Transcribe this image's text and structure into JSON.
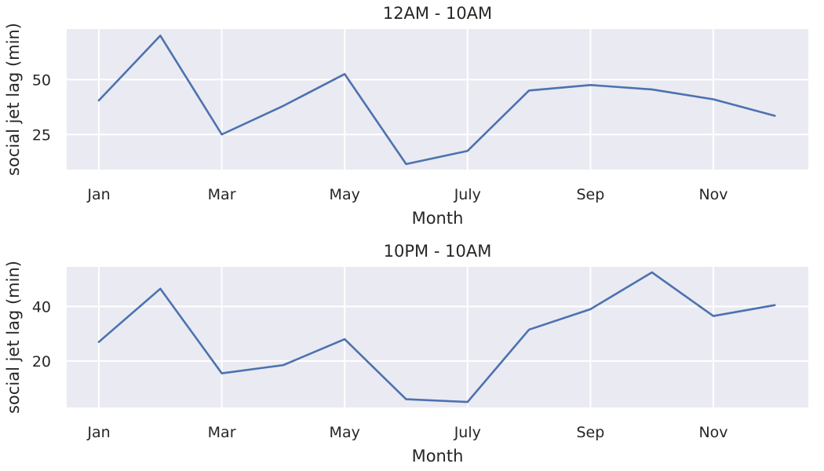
{
  "chart_data": [
    {
      "type": "line",
      "title": "12AM - 10AM",
      "xlabel": "Month",
      "ylabel": "social jet lag (min)",
      "x_ticks": [
        "Jan",
        "Mar",
        "May",
        "July",
        "Sep",
        "Nov"
      ],
      "y_ticks": [
        25,
        50
      ],
      "ylim": [
        9,
        73
      ],
      "grid": true,
      "series": [
        {
          "color": "#4c72b0",
          "x": [
            "Jan",
            "Feb",
            "Mar",
            "Apr",
            "May",
            "Jun",
            "July",
            "Aug",
            "Sep",
            "Oct",
            "Nov",
            "Dec"
          ],
          "values": [
            40.5,
            70,
            25,
            38,
            52.5,
            11.5,
            17.5,
            45,
            47.5,
            45.5,
            41,
            33.5
          ]
        }
      ]
    },
    {
      "type": "line",
      "title": "10PM - 10AM",
      "xlabel": "Month",
      "ylabel": "social jet lag (min)",
      "x_ticks": [
        "Jan",
        "Mar",
        "May",
        "July",
        "Sep",
        "Nov"
      ],
      "y_ticks": [
        20,
        40
      ],
      "ylim": [
        3,
        54.5
      ],
      "grid": true,
      "series": [
        {
          "color": "#4c72b0",
          "x": [
            "Jan",
            "Feb",
            "Mar",
            "Apr",
            "May",
            "Jun",
            "July",
            "Aug",
            "Sep",
            "Oct",
            "Nov",
            "Dec"
          ],
          "values": [
            27,
            46.5,
            15.5,
            18.5,
            28,
            6,
            5,
            31.5,
            39,
            52.5,
            36.5,
            40.5
          ]
        }
      ]
    }
  ]
}
